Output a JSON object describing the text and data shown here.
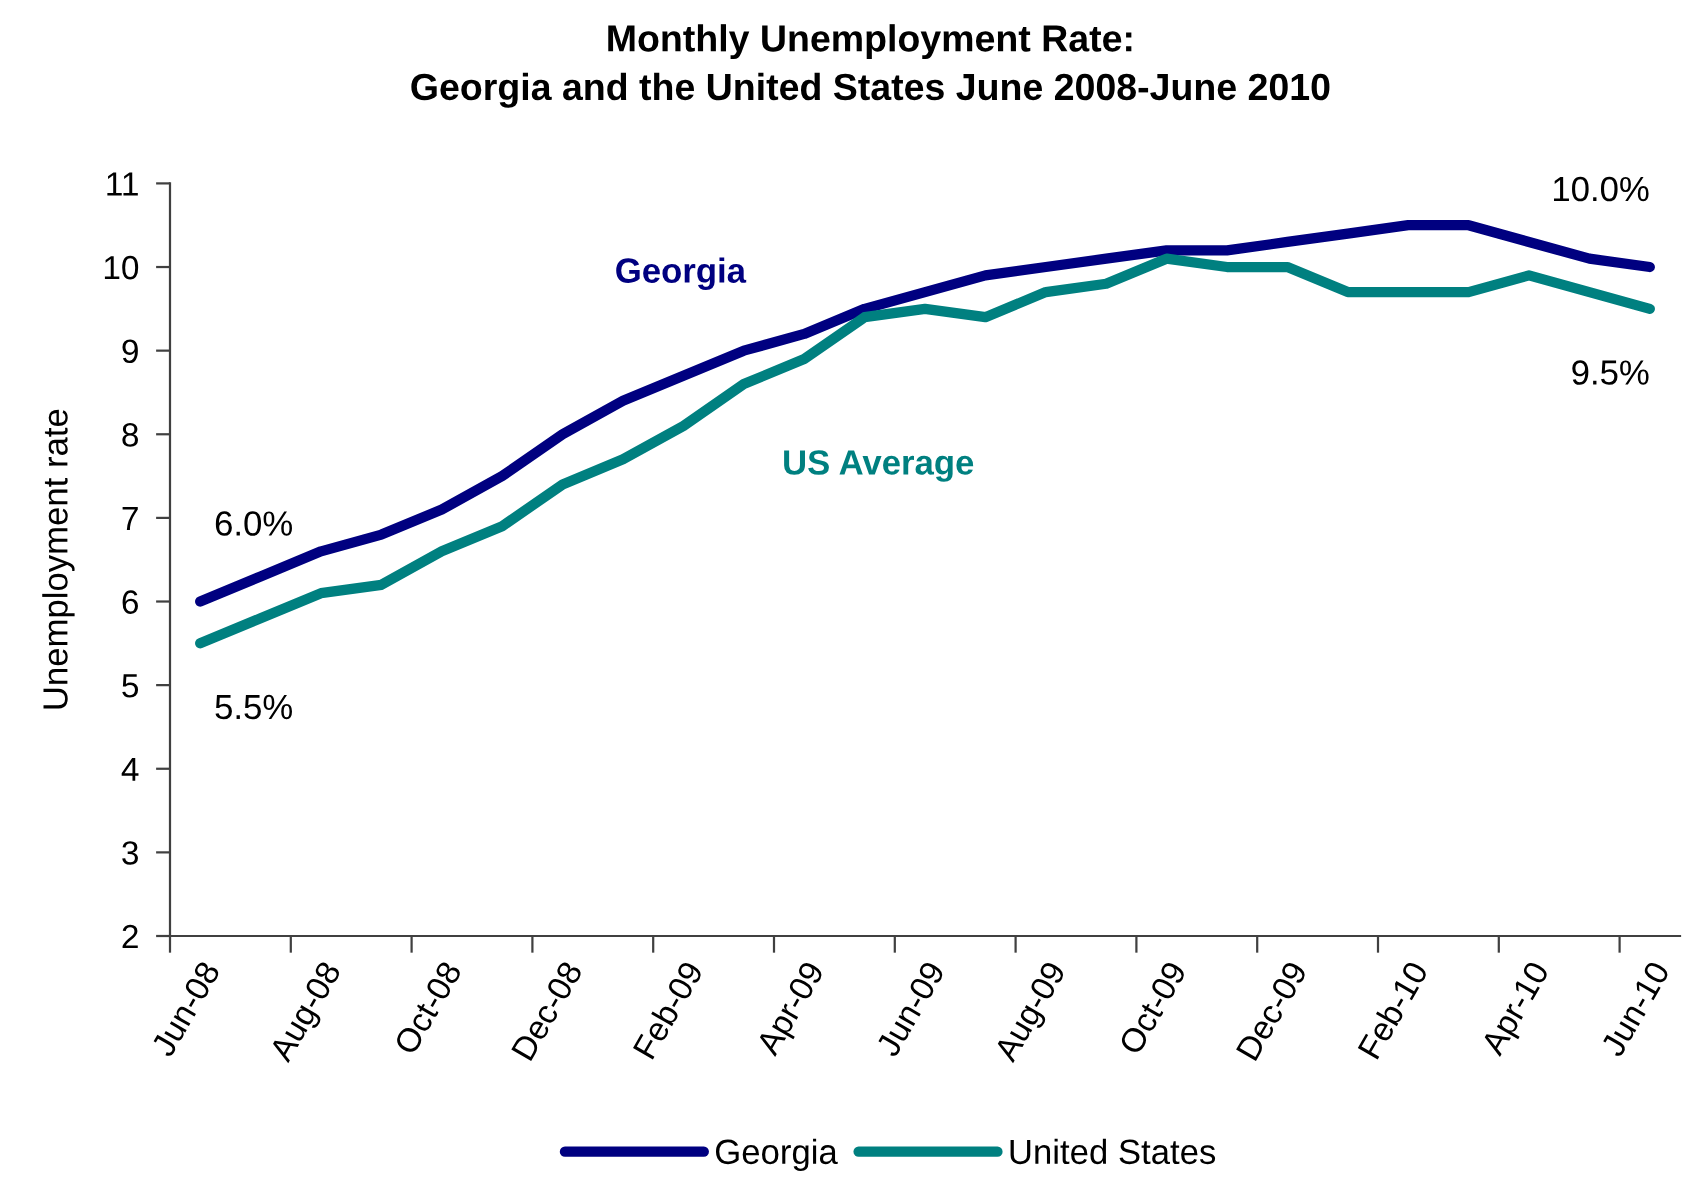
{
  "chart_data": {
    "type": "line",
    "title": "Monthly Unemployment Rate:\nGeorgia and the United States June 2008-June 2010",
    "ylabel": "Unemployment rate",
    "categories": [
      "Jun-08",
      null,
      "Aug-08",
      null,
      "Oct-08",
      null,
      "Dec-08",
      null,
      "Feb-09",
      null,
      "Apr-09",
      null,
      "Jun-09",
      null,
      "Aug-09",
      null,
      "Oct-09",
      null,
      "Dec-09",
      null,
      "Feb-10",
      null,
      "Apr-10",
      null,
      "Jun-10"
    ],
    "series": [
      {
        "name": "Georgia",
        "color": "#000080",
        "values": [
          6.0,
          6.3,
          6.6,
          6.8,
          7.1,
          7.5,
          8.0,
          8.4,
          8.7,
          9.0,
          9.2,
          9.5,
          9.7,
          9.9,
          10.0,
          10.1,
          10.2,
          10.2,
          10.3,
          10.4,
          10.5,
          10.5,
          10.3,
          10.1,
          10.0
        ],
        "value_labels": [
          "6.0%",
          null,
          null,
          null,
          null,
          null,
          null,
          null,
          null,
          null,
          null,
          null,
          null,
          null,
          null,
          null,
          null,
          null,
          null,
          null,
          null,
          null,
          null,
          null,
          "10.0%"
        ]
      },
      {
        "name": "United States",
        "color": "#008080",
        "values": [
          5.5,
          5.8,
          6.1,
          6.2,
          6.6,
          6.9,
          7.4,
          7.7,
          8.1,
          8.6,
          8.9,
          9.4,
          9.5,
          9.4,
          9.7,
          9.8,
          10.1,
          10.0,
          10.0,
          9.7,
          9.7,
          9.7,
          9.9,
          9.7,
          9.5
        ],
        "value_labels": [
          "5.5%",
          null,
          null,
          null,
          null,
          null,
          null,
          null,
          null,
          null,
          null,
          null,
          null,
          null,
          null,
          null,
          null,
          null,
          null,
          null,
          null,
          null,
          null,
          null,
          "9.5%"
        ]
      }
    ],
    "annotations": [
      "Georgia",
      "US Average"
    ],
    "ylim": [
      2,
      11
    ],
    "yticks": [
      2,
      3,
      4,
      5,
      6,
      7,
      8,
      9,
      10,
      11
    ],
    "grid": false,
    "legend": "bottom",
    "marker": "none",
    "line_style": "solid"
  }
}
